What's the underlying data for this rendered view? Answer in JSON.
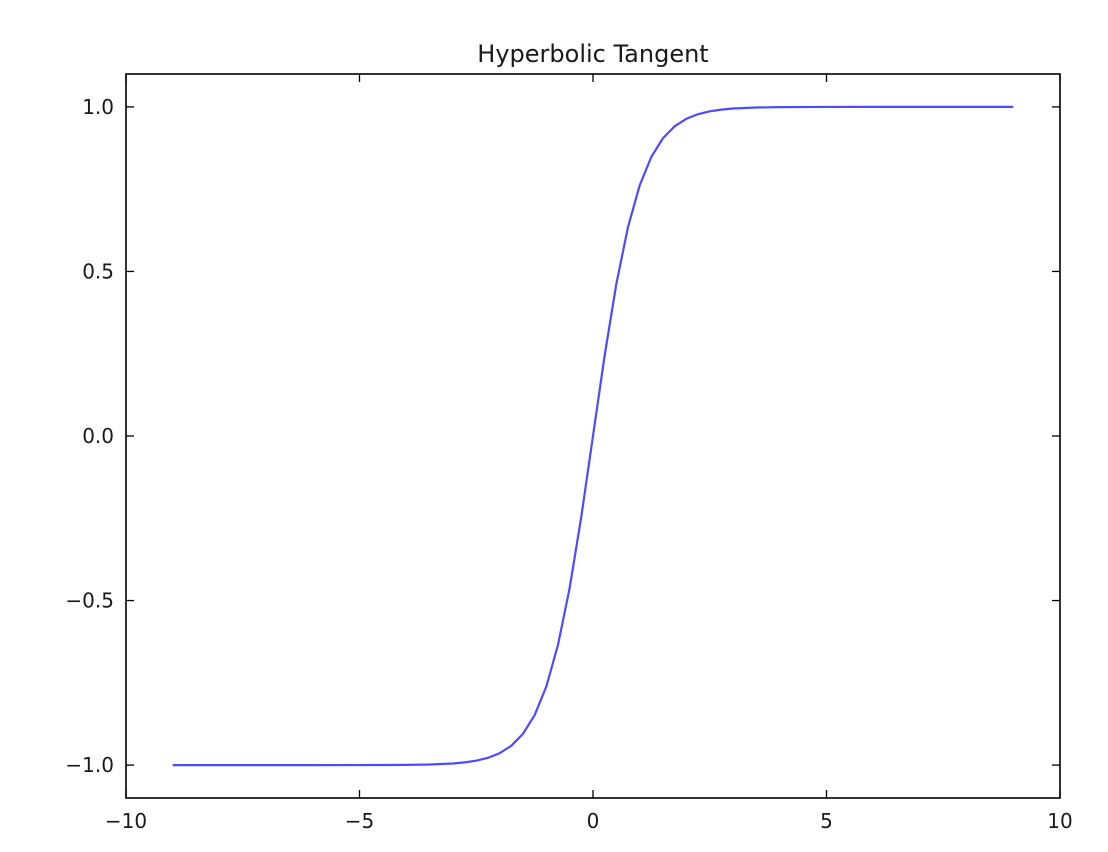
{
  "chart_data": {
    "type": "line",
    "title": "Hyperbolic Tangent",
    "xlabel": "",
    "ylabel": "",
    "xlim": [
      -10,
      10
    ],
    "ylim": [
      -1.1,
      1.1
    ],
    "grid": false,
    "x_ticks": [
      -10,
      -5,
      0,
      5,
      10
    ],
    "y_ticks": [
      -1.0,
      -0.5,
      0.0,
      0.5,
      1.0
    ],
    "x_tick_labels": [
      "−10",
      "−5",
      "0",
      "5",
      "10"
    ],
    "y_tick_labels": [
      "−1.0",
      "−0.5",
      "0.0",
      "0.5",
      "1.0"
    ],
    "series": [
      {
        "color": "#4b4bff",
        "function": "tanh(x)",
        "x": [
          -9.0,
          -8.0,
          -7.0,
          -6.0,
          -5.0,
          -4.0,
          -3.5,
          -3.0,
          -2.75,
          -2.5,
          -2.25,
          -2.0,
          -1.75,
          -1.5,
          -1.25,
          -1.0,
          -0.75,
          -0.5,
          -0.25,
          0.0,
          0.25,
          0.5,
          0.75,
          1.0,
          1.25,
          1.5,
          1.75,
          2.0,
          2.25,
          2.5,
          2.75,
          3.0,
          3.5,
          4.0,
          5.0,
          6.0,
          7.0,
          8.0,
          9.0
        ],
        "y": [
          -1.0,
          -1.0,
          -1.0,
          -1.0,
          -0.9999,
          -0.9993,
          -0.9982,
          -0.9951,
          -0.9918,
          -0.9866,
          -0.978,
          -0.964,
          -0.9414,
          -0.9051,
          -0.8483,
          -0.7616,
          -0.6351,
          -0.4621,
          -0.2449,
          0.0,
          0.2449,
          0.4621,
          0.6351,
          0.7616,
          0.8483,
          0.9051,
          0.9414,
          0.964,
          0.978,
          0.9866,
          0.9918,
          0.9951,
          0.9982,
          0.9993,
          0.9999,
          1.0,
          1.0,
          1.0,
          1.0
        ]
      }
    ]
  }
}
